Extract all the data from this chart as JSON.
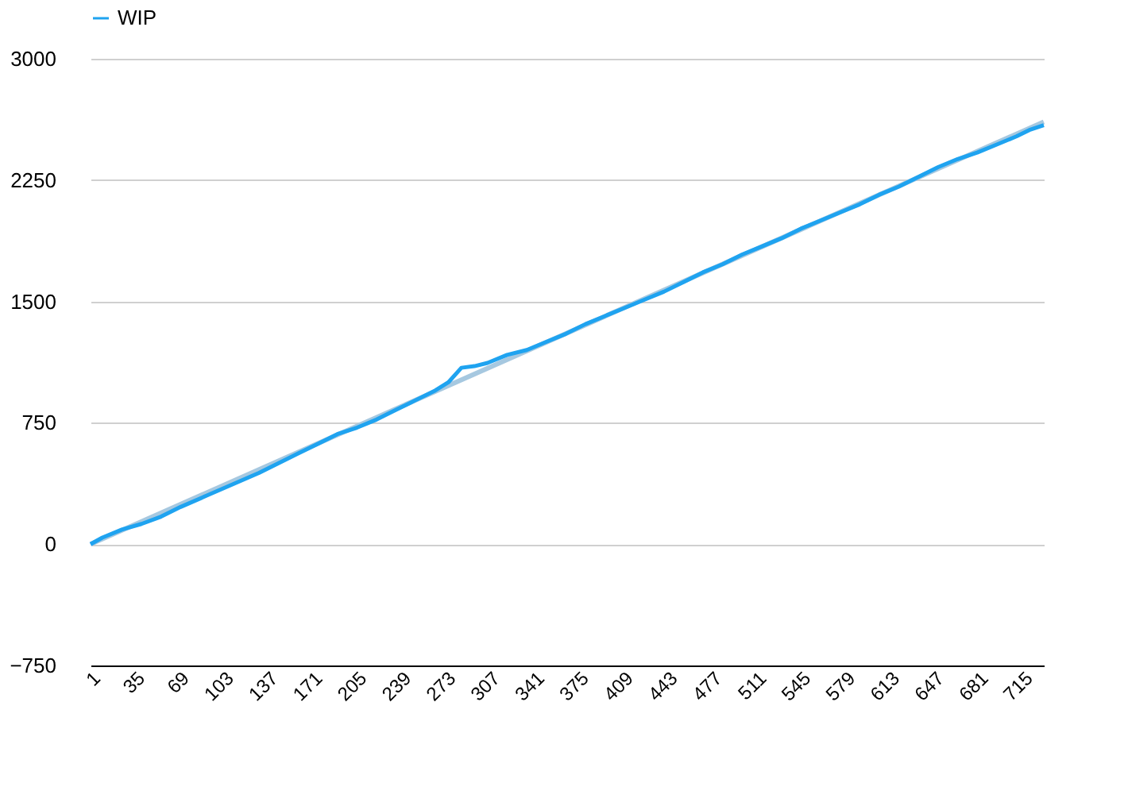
{
  "chart_data": {
    "type": "line",
    "series": [
      {
        "name": "WIP",
        "color": "#1fa3f0",
        "x": [
          1,
          10,
          25,
          40,
          55,
          70,
          90,
          110,
          130,
          145,
          160,
          175,
          190,
          205,
          220,
          235,
          250,
          265,
          275,
          285,
          295,
          305,
          320,
          335,
          350,
          365,
          380,
          395,
          410,
          425,
          440,
          455,
          470,
          485,
          500,
          515,
          530,
          545,
          560,
          575,
          590,
          605,
          620,
          635,
          650,
          665,
          680,
          695,
          710,
          720,
          731
        ],
        "values": [
          0,
          40,
          90,
          125,
          170,
          230,
          300,
          370,
          440,
          500,
          560,
          620,
          680,
          720,
          770,
          830,
          890,
          950,
          1000,
          1090,
          1100,
          1120,
          1170,
          1200,
          1250,
          1300,
          1360,
          1410,
          1460,
          1510,
          1560,
          1620,
          1680,
          1730,
          1790,
          1840,
          1890,
          1950,
          2000,
          2050,
          2100,
          2160,
          2210,
          2270,
          2330,
          2380,
          2420,
          2470,
          2520,
          2560,
          2590
        ]
      },
      {
        "color": "#a6c8e0",
        "x": [
          1,
          731
        ],
        "values": [
          0,
          2610
        ]
      }
    ],
    "xlim": [
      1,
      731
    ],
    "xticks": [
      1,
      35,
      69,
      103,
      137,
      171,
      205,
      239,
      273,
      307,
      341,
      375,
      409,
      443,
      477,
      511,
      545,
      579,
      613,
      647,
      681,
      715
    ],
    "ylim": [
      -750,
      3000
    ],
    "yticks": [
      -750,
      0,
      750,
      1500,
      2250,
      3000
    ],
    "grid": "y",
    "legend": "top",
    "marker": "none",
    "line_style": "solid"
  }
}
